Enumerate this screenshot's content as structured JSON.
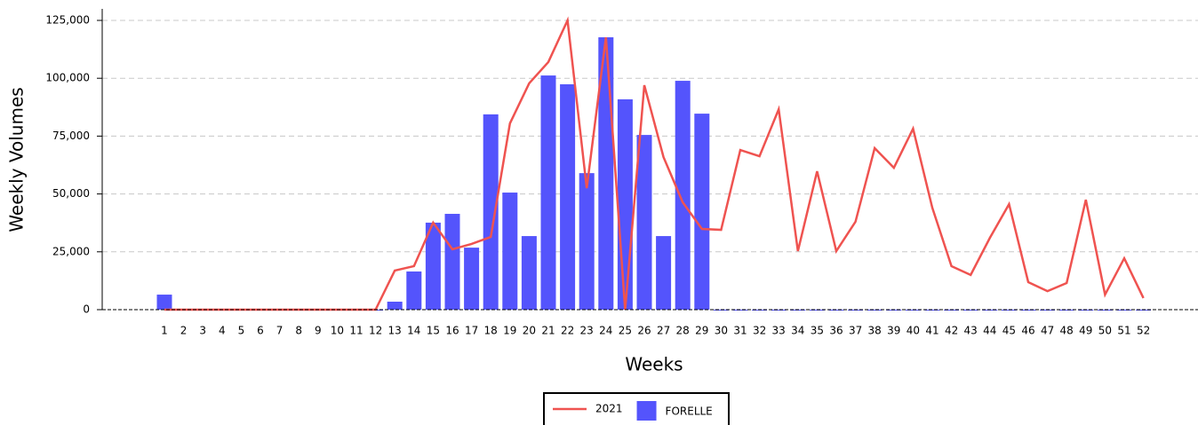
{
  "chart_data": {
    "type": "bar-line",
    "x_label": "Weeks",
    "y_label": "Weekly Volumes",
    "categories": [
      "1",
      "2",
      "3",
      "4",
      "5",
      "6",
      "7",
      "8",
      "9",
      "10",
      "11",
      "12",
      "13",
      "14",
      "15",
      "16",
      "17",
      "18",
      "19",
      "20",
      "21",
      "22",
      "23",
      "24",
      "25",
      "26",
      "27",
      "28",
      "29",
      "30",
      "31",
      "32",
      "33",
      "34",
      "35",
      "36",
      "37",
      "38",
      "39",
      "40",
      "41",
      "42",
      "43",
      "44",
      "45",
      "46",
      "47",
      "48",
      "49",
      "50",
      "51",
      "52"
    ],
    "series": [
      {
        "name": "2021",
        "type": "line",
        "color": "#ef5350",
        "values": [
          0,
          0,
          0,
          0,
          0,
          0,
          0,
          0,
          0,
          0,
          0,
          0,
          16900,
          18800,
          37600,
          26100,
          28400,
          31400,
          80500,
          97800,
          107000,
          125000,
          52500,
          117700,
          0,
          97000,
          65900,
          46400,
          34900,
          34500,
          69000,
          66300,
          86600,
          25300,
          59800,
          25300,
          38000,
          69800,
          61300,
          78200,
          44100,
          18800,
          15000,
          31000,
          45600,
          11900,
          8000,
          11500,
          47500,
          6500,
          22200,
          5000
        ]
      },
      {
        "name": "FORELLE",
        "type": "bar",
        "color": "#5454fc",
        "values": [
          6500,
          0,
          0,
          0,
          0,
          0,
          0,
          0,
          0,
          0,
          0,
          0,
          3450,
          16500,
          37600,
          41400,
          26800,
          84400,
          50600,
          31800,
          101200,
          97400,
          59000,
          117700,
          90900,
          75500,
          31800,
          98900,
          84700,
          0,
          0,
          0,
          0,
          0,
          0,
          0,
          0,
          0,
          0,
          0,
          0,
          0,
          0,
          0,
          0,
          0,
          0,
          0,
          0,
          0,
          0,
          0
        ]
      }
    ],
    "ylim": [
      0,
      125000
    ],
    "yticks": [
      0,
      {
        "value": 25000,
        "label": "25,000"
      },
      {
        "value": 50000,
        "label": "50,000"
      },
      {
        "value": 75000,
        "label": "75,000"
      },
      {
        "value": 100000,
        "label": "100,000"
      },
      {
        "value": 125000,
        "label": "125,000"
      }
    ],
    "grid": true,
    "legend": "bottom"
  }
}
